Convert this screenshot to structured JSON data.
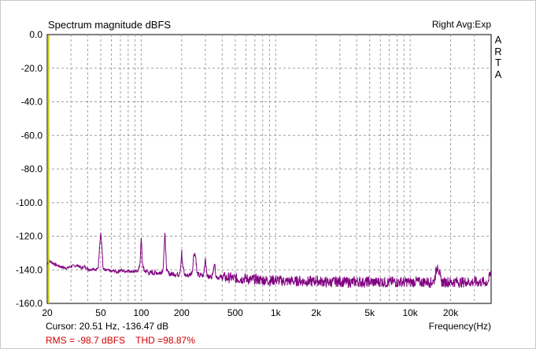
{
  "window": {
    "title": "Spectrum magnitude dBFS",
    "right_info": "Right Avg:Exp",
    "brand_letters": [
      "A",
      "R",
      "T",
      "A"
    ]
  },
  "status": {
    "cursor": "Cursor: 20.51 Hz, -136.47 dB",
    "rms": "RMS =  -98.7 dBFS",
    "thd": "THD =98.87%"
  },
  "colors": {
    "trace": "#800080",
    "grid": "#a0a0a0",
    "cursor_line": "#c8c800",
    "stats_text": "#d00000"
  },
  "chart_data": {
    "type": "line",
    "title": "Spectrum magnitude dBFS",
    "xlabel": "Frequency(Hz)",
    "ylabel": "",
    "x_scale": "log",
    "xlim": [
      20,
      40000
    ],
    "ylim": [
      -160,
      0
    ],
    "grid": true,
    "y_ticks": [
      {
        "value": 0,
        "label": "0.0"
      },
      {
        "value": -20,
        "label": "-20.0"
      },
      {
        "value": -40,
        "label": "-40.0"
      },
      {
        "value": -60,
        "label": "-60.0"
      },
      {
        "value": -80,
        "label": "-80.0"
      },
      {
        "value": -100,
        "label": "-100.0"
      },
      {
        "value": -120,
        "label": "-120.0"
      },
      {
        "value": -140,
        "label": "-140.0"
      },
      {
        "value": -160,
        "label": "-160.0"
      }
    ],
    "x_ticks": [
      {
        "value": 20,
        "label": "20"
      },
      {
        "value": 50,
        "label": "50"
      },
      {
        "value": 100,
        "label": "100"
      },
      {
        "value": 200,
        "label": "200"
      },
      {
        "value": 500,
        "label": "500"
      },
      {
        "value": 1000,
        "label": "1k"
      },
      {
        "value": 2000,
        "label": "2k"
      },
      {
        "value": 5000,
        "label": "5k"
      },
      {
        "value": 10000,
        "label": "10k"
      },
      {
        "value": 20000,
        "label": "20k"
      }
    ],
    "cursor": {
      "x": 20.51,
      "y": -136.47
    },
    "series": [
      {
        "name": "Right",
        "color": "#800080",
        "x": [
          20,
          21,
          22,
          24,
          26,
          28,
          30,
          32,
          34,
          36,
          38,
          40,
          42,
          44,
          46,
          48,
          49,
          50,
          51,
          52,
          54,
          56,
          58,
          60,
          63,
          66,
          70,
          75,
          80,
          85,
          90,
          95,
          98,
          100,
          102,
          105,
          110,
          115,
          120,
          125,
          130,
          135,
          140,
          145,
          148,
          150,
          152,
          155,
          160,
          165,
          170,
          175,
          180,
          185,
          190,
          195,
          198,
          200,
          202,
          210,
          220,
          230,
          240,
          245,
          250,
          255,
          260,
          270,
          280,
          290,
          300,
          310,
          320,
          330,
          340,
          345,
          350,
          355,
          360,
          380,
          400,
          420,
          440,
          460,
          480,
          500,
          550,
          600,
          650,
          700,
          750,
          800,
          900,
          1000,
          1100,
          1200,
          1300,
          1400,
          1500,
          1700,
          1900,
          2000,
          2200,
          2500,
          2800,
          3000,
          3500,
          4000,
          4500,
          5000,
          5500,
          6000,
          6500,
          7000,
          7500,
          8000,
          8500,
          9000,
          9500,
          10000,
          11000,
          12000,
          13000,
          14000,
          15000,
          16000,
          17000,
          18000,
          19000,
          20000,
          22000,
          24000,
          26000,
          28000,
          30000,
          32000,
          34000,
          36000,
          38000,
          40000
        ],
        "y": [
          -136.5,
          -135.0,
          -136.0,
          -137.5,
          -138.5,
          -139.0,
          -138.0,
          -137.5,
          -137.5,
          -139.0,
          -138.0,
          -139.5,
          -140.0,
          -139.0,
          -140.5,
          -138.0,
          -126.0,
          -118.0,
          -126.0,
          -139.0,
          -140.5,
          -140.0,
          -140.5,
          -141.0,
          -140.5,
          -141.5,
          -140.0,
          -141.0,
          -140.5,
          -141.0,
          -141.0,
          -140.5,
          -136.0,
          -121.0,
          -136.0,
          -140.5,
          -141.0,
          -142.0,
          -141.5,
          -142.0,
          -141.5,
          -142.0,
          -141.5,
          -140.0,
          -128.0,
          -118.0,
          -129.0,
          -141.0,
          -142.0,
          -142.5,
          -142.5,
          -142.0,
          -143.0,
          -142.5,
          -143.0,
          -140.0,
          -135.0,
          -128.0,
          -136.0,
          -143.0,
          -143.5,
          -143.0,
          -141.0,
          -132.0,
          -130.0,
          -133.0,
          -142.0,
          -143.5,
          -143.0,
          -144.0,
          -133.0,
          -144.0,
          -144.5,
          -144.0,
          -143.0,
          -138.5,
          -136.5,
          -139.0,
          -144.0,
          -144.5,
          -144.0,
          -144.5,
          -145.0,
          -144.5,
          -145.0,
          -145.0,
          -145.5,
          -145.0,
          -146.0,
          -145.5,
          -146.0,
          -146.0,
          -146.5,
          -146.0,
          -146.5,
          -147.0,
          -146.5,
          -147.0,
          -146.5,
          -147.0,
          -147.0,
          -146.5,
          -147.0,
          -147.5,
          -147.0,
          -147.0,
          -147.5,
          -147.0,
          -147.5,
          -147.0,
          -147.5,
          -147.0,
          -147.5,
          -147.5,
          -147.0,
          -147.5,
          -147.0,
          -147.5,
          -147.0,
          -147.5,
          -147.0,
          -147.5,
          -147.0,
          -147.5,
          -147.0,
          -137.0,
          -147.0,
          -147.5,
          -147.0,
          -147.5,
          -147.0,
          -147.5,
          -147.0,
          -147.5,
          -147.0,
          -147.5,
          -147.0,
          -147.5,
          -147.0,
          -141.0
        ]
      }
    ]
  }
}
